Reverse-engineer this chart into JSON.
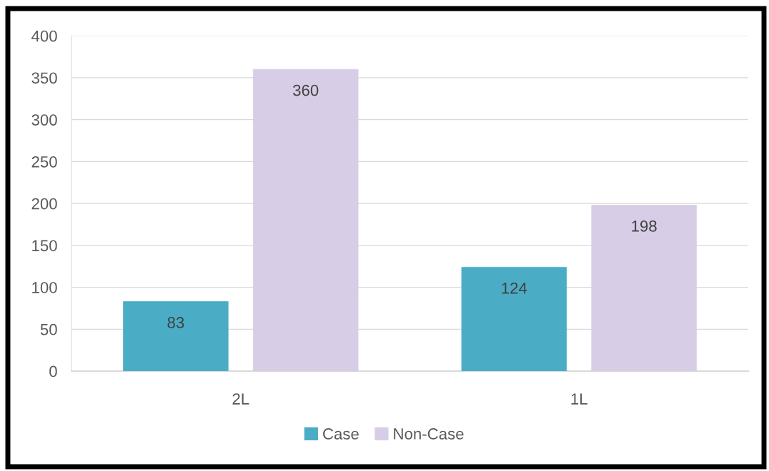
{
  "chart_data": {
    "type": "bar",
    "categories": [
      "2L",
      "1L"
    ],
    "series": [
      {
        "name": "Case",
        "color": "#4bacc6",
        "values": [
          83,
          124
        ]
      },
      {
        "name": "Non-Case",
        "color": "#d7cde6",
        "values": [
          360,
          198
        ]
      }
    ],
    "ylim": [
      0,
      400
    ],
    "yticks": [
      0,
      50,
      100,
      150,
      200,
      250,
      300,
      350,
      400
    ],
    "grid": "y",
    "legend": "bottom",
    "data_labels": true
  }
}
